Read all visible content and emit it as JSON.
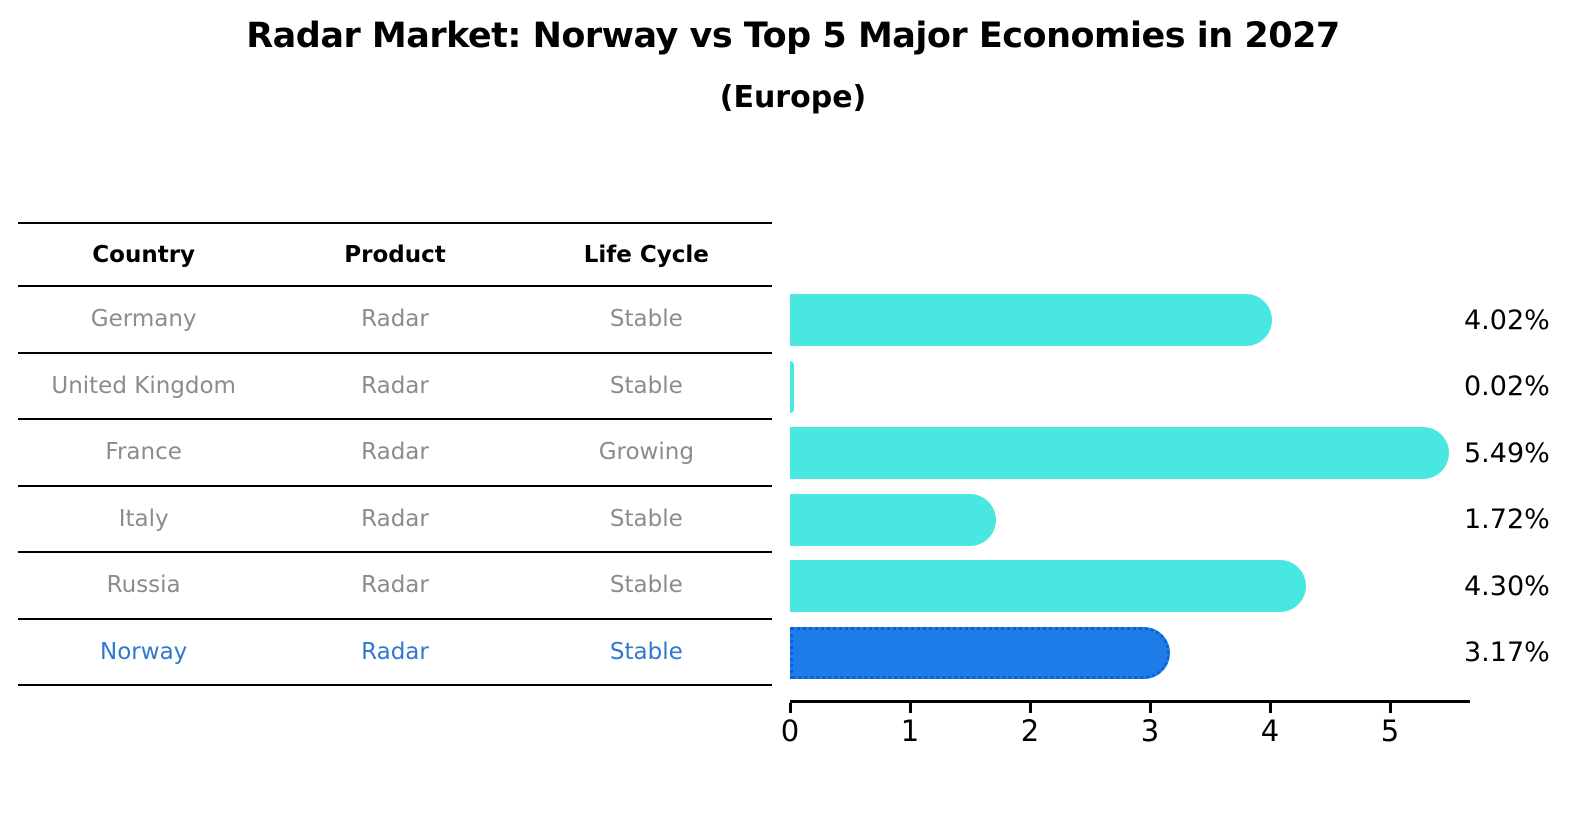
{
  "title": "Radar Market: Norway vs Top 5 Major Economies in 2027",
  "subtitle": "(Europe)",
  "table": {
    "headers": [
      "Country",
      "Product",
      "Life Cycle"
    ],
    "rows": [
      {
        "country": "Germany",
        "product": "Radar",
        "life_cycle": "Stable",
        "highlight": false
      },
      {
        "country": "United Kingdom",
        "product": "Radar",
        "life_cycle": "Stable",
        "highlight": false
      },
      {
        "country": "France",
        "product": "Radar",
        "life_cycle": "Growing",
        "highlight": false
      },
      {
        "country": "Italy",
        "product": "Radar",
        "life_cycle": "Stable",
        "highlight": false
      },
      {
        "country": "Russia",
        "product": "Radar",
        "life_cycle": "Stable",
        "highlight": false
      },
      {
        "country": "Norway",
        "product": "Radar",
        "life_cycle": "Stable",
        "highlight": true
      }
    ]
  },
  "chart_data": {
    "type": "bar",
    "orientation": "horizontal",
    "title": "Radar Market: Norway vs Top 5 Major Economies in 2027",
    "subtitle": "(Europe)",
    "categories": [
      "Germany",
      "United Kingdom",
      "France",
      "Italy",
      "Russia",
      "Norway"
    ],
    "values": [
      4.02,
      0.02,
      5.49,
      1.72,
      4.3,
      3.17
    ],
    "value_labels": [
      "4.02%",
      "0.02%",
      "5.49%",
      "1.72%",
      "4.30%",
      "3.17%"
    ],
    "xticks": [
      0,
      1,
      2,
      3,
      4,
      5
    ],
    "xlim": [
      0,
      5.67
    ],
    "grid": false,
    "legend": "none",
    "bar_color": "#48e8e0",
    "highlight_color": "#1e7ce8",
    "highlight_border_color": "#0e5fd6",
    "highlight_index": 5
  },
  "colors": {
    "background": "#ffffff",
    "table_text_gray": "#8c8c8c",
    "highlight_text": "#3079d1",
    "line": "#000000"
  }
}
